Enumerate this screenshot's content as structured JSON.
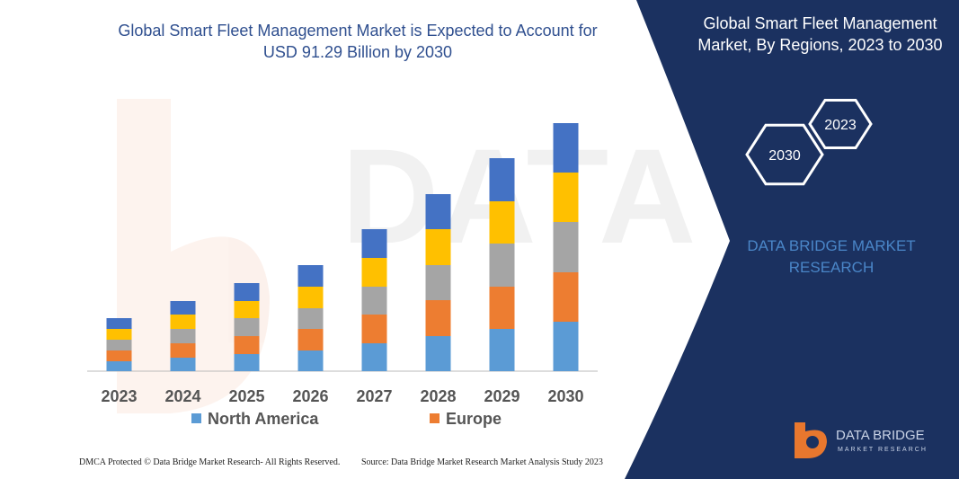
{
  "chart_data": {
    "type": "stacked_bar",
    "title": "Global Smart Fleet Management Market is Expected to Account for USD 91.29 Billion by 2030",
    "categories": [
      "2023",
      "2024",
      "2025",
      "2026",
      "2027",
      "2028",
      "2029",
      "2030"
    ],
    "series": [
      {
        "name": "North America",
        "color": "#5b9bd5",
        "values": [
          11,
          15,
          19,
          23,
          31,
          39,
          47,
          55
        ]
      },
      {
        "name": "Europe",
        "color": "#ed7d31",
        "values": [
          12,
          16,
          20,
          24,
          32,
          40,
          47,
          55
        ]
      },
      {
        "color": "#a5a5a5",
        "values": [
          12,
          16,
          20,
          23,
          31,
          39,
          48,
          56
        ]
      },
      {
        "color": "#ffc000",
        "values": [
          12,
          16,
          19,
          24,
          32,
          40,
          47,
          55
        ]
      },
      {
        "color": "#4472c4",
        "values": [
          12,
          15,
          20,
          24,
          32,
          39,
          48,
          55
        ]
      }
    ],
    "ylim": [
      0,
      300
    ]
  },
  "panel": {
    "title": "Global Smart Fleet Management Market, By Regions, 2023 to 2030",
    "hexagons": [
      "2023",
      "2030"
    ],
    "brand": "DATA BRIDGE MARKET RESEARCH"
  },
  "footer": {
    "left": "DMCA Protected © Data Bridge Market Research- All Rights Reserved.",
    "right": "Source: Data Bridge Market Research Market Analysis Study 2023"
  },
  "logo": {
    "name": "DATA BRIDGE",
    "tagline": "MARKET RESEARCH"
  }
}
